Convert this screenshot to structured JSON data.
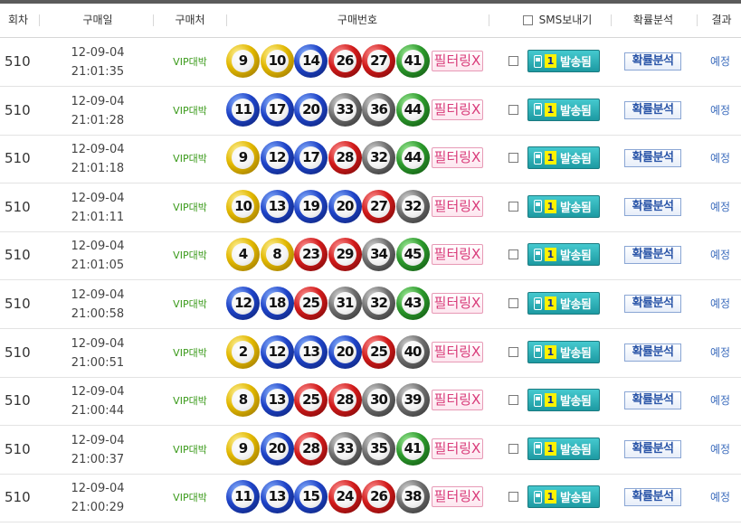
{
  "header": {
    "round": "회차",
    "date": "구매일",
    "shop": "구매처",
    "numbers": "구매번호",
    "sms": "SMS보내기",
    "analysis": "확률분석",
    "result": "결과"
  },
  "colors": {
    "yellow": "#e2b800",
    "blue": "#1f44c8",
    "red": "#d21b1b",
    "gray": "#6e6e6e",
    "green": "#2c9a2c",
    "shop_text": "#3a9a1a",
    "filter_text": "#d93c7a",
    "send_bg": "#1d9aa2",
    "result_text": "#3d6dbd"
  },
  "rows": [
    {
      "round": "510",
      "date": "12-09-04",
      "time": "21:01:35",
      "shop": "VIP대박",
      "balls": [
        {
          "n": "9",
          "c": "yellow"
        },
        {
          "n": "10",
          "c": "yellow"
        },
        {
          "n": "14",
          "c": "blue"
        },
        {
          "n": "26",
          "c": "red"
        },
        {
          "n": "27",
          "c": "red"
        },
        {
          "n": "41",
          "c": "green"
        }
      ],
      "filter": "필터링X",
      "sms_count": "1",
      "sms_label": "발송됨",
      "analysis": "확률분석",
      "result": "예정"
    },
    {
      "round": "510",
      "date": "12-09-04",
      "time": "21:01:28",
      "shop": "VIP대박",
      "balls": [
        {
          "n": "11",
          "c": "blue"
        },
        {
          "n": "17",
          "c": "blue"
        },
        {
          "n": "20",
          "c": "blue"
        },
        {
          "n": "33",
          "c": "gray"
        },
        {
          "n": "36",
          "c": "gray"
        },
        {
          "n": "44",
          "c": "green"
        }
      ],
      "filter": "필터링X",
      "sms_count": "1",
      "sms_label": "발송됨",
      "analysis": "확률분석",
      "result": "예정"
    },
    {
      "round": "510",
      "date": "12-09-04",
      "time": "21:01:18",
      "shop": "VIP대박",
      "balls": [
        {
          "n": "9",
          "c": "yellow"
        },
        {
          "n": "12",
          "c": "blue"
        },
        {
          "n": "17",
          "c": "blue"
        },
        {
          "n": "28",
          "c": "red"
        },
        {
          "n": "32",
          "c": "gray"
        },
        {
          "n": "44",
          "c": "green"
        }
      ],
      "filter": "필터링X",
      "sms_count": "1",
      "sms_label": "발송됨",
      "analysis": "확률분석",
      "result": "예정"
    },
    {
      "round": "510",
      "date": "12-09-04",
      "time": "21:01:11",
      "shop": "VIP대박",
      "balls": [
        {
          "n": "10",
          "c": "yellow"
        },
        {
          "n": "13",
          "c": "blue"
        },
        {
          "n": "19",
          "c": "blue"
        },
        {
          "n": "20",
          "c": "blue"
        },
        {
          "n": "27",
          "c": "red"
        },
        {
          "n": "32",
          "c": "gray"
        }
      ],
      "filter": "필터링X",
      "sms_count": "1",
      "sms_label": "발송됨",
      "analysis": "확률분석",
      "result": "예정"
    },
    {
      "round": "510",
      "date": "12-09-04",
      "time": "21:01:05",
      "shop": "VIP대박",
      "balls": [
        {
          "n": "4",
          "c": "yellow"
        },
        {
          "n": "8",
          "c": "yellow"
        },
        {
          "n": "23",
          "c": "red"
        },
        {
          "n": "29",
          "c": "red"
        },
        {
          "n": "34",
          "c": "gray"
        },
        {
          "n": "45",
          "c": "green"
        }
      ],
      "filter": "필터링X",
      "sms_count": "1",
      "sms_label": "발송됨",
      "analysis": "확률분석",
      "result": "예정"
    },
    {
      "round": "510",
      "date": "12-09-04",
      "time": "21:00:58",
      "shop": "VIP대박",
      "balls": [
        {
          "n": "12",
          "c": "blue"
        },
        {
          "n": "18",
          "c": "blue"
        },
        {
          "n": "25",
          "c": "red"
        },
        {
          "n": "31",
          "c": "gray"
        },
        {
          "n": "32",
          "c": "gray"
        },
        {
          "n": "43",
          "c": "green"
        }
      ],
      "filter": "필터링X",
      "sms_count": "1",
      "sms_label": "발송됨",
      "analysis": "확률분석",
      "result": "예정"
    },
    {
      "round": "510",
      "date": "12-09-04",
      "time": "21:00:51",
      "shop": "VIP대박",
      "balls": [
        {
          "n": "2",
          "c": "yellow"
        },
        {
          "n": "12",
          "c": "blue"
        },
        {
          "n": "13",
          "c": "blue"
        },
        {
          "n": "20",
          "c": "blue"
        },
        {
          "n": "25",
          "c": "red"
        },
        {
          "n": "40",
          "c": "gray"
        }
      ],
      "filter": "필터링X",
      "sms_count": "1",
      "sms_label": "발송됨",
      "analysis": "확률분석",
      "result": "예정"
    },
    {
      "round": "510",
      "date": "12-09-04",
      "time": "21:00:44",
      "shop": "VIP대박",
      "balls": [
        {
          "n": "8",
          "c": "yellow"
        },
        {
          "n": "13",
          "c": "blue"
        },
        {
          "n": "25",
          "c": "red"
        },
        {
          "n": "28",
          "c": "red"
        },
        {
          "n": "30",
          "c": "gray"
        },
        {
          "n": "39",
          "c": "gray"
        }
      ],
      "filter": "필터링X",
      "sms_count": "1",
      "sms_label": "발송됨",
      "analysis": "확률분석",
      "result": "예정"
    },
    {
      "round": "510",
      "date": "12-09-04",
      "time": "21:00:37",
      "shop": "VIP대박",
      "balls": [
        {
          "n": "9",
          "c": "yellow"
        },
        {
          "n": "20",
          "c": "blue"
        },
        {
          "n": "28",
          "c": "red"
        },
        {
          "n": "33",
          "c": "gray"
        },
        {
          "n": "35",
          "c": "gray"
        },
        {
          "n": "41",
          "c": "green"
        }
      ],
      "filter": "필터링X",
      "sms_count": "1",
      "sms_label": "발송됨",
      "analysis": "확률분석",
      "result": "예정"
    },
    {
      "round": "510",
      "date": "12-09-04",
      "time": "21:00:29",
      "shop": "VIP대박",
      "balls": [
        {
          "n": "11",
          "c": "blue"
        },
        {
          "n": "13",
          "c": "blue"
        },
        {
          "n": "15",
          "c": "blue"
        },
        {
          "n": "24",
          "c": "red"
        },
        {
          "n": "26",
          "c": "red"
        },
        {
          "n": "38",
          "c": "gray"
        }
      ],
      "filter": "필터링X",
      "sms_count": "1",
      "sms_label": "발송됨",
      "analysis": "확률분석",
      "result": "예정"
    }
  ]
}
